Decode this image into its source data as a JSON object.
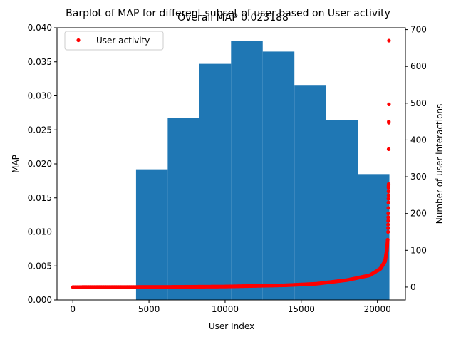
{
  "suptitle": "Barplot of MAP for different subset of user based on User activity",
  "chart_data": {
    "type": "bar",
    "title": "Overall MAP 0.023188",
    "xlabel": "User Index",
    "ylabel": "MAP",
    "y2label": "Number of user interactions",
    "xlim": [
      -1040,
      21840
    ],
    "ylim": [
      0,
      0.04
    ],
    "y2lim": [
      -35,
      705
    ],
    "xticks": [
      0,
      5000,
      10000,
      15000,
      20000
    ],
    "yticks": [
      0.0,
      0.005,
      0.01,
      0.015,
      0.02,
      0.025,
      0.03,
      0.035,
      0.04
    ],
    "ytick_labels": [
      "0.000",
      "0.005",
      "0.010",
      "0.015",
      "0.020",
      "0.025",
      "0.030",
      "0.035",
      "0.040"
    ],
    "y2ticks": [
      0,
      100,
      200,
      300,
      400,
      500,
      600,
      700
    ],
    "bar_color": "#1f77b4",
    "bars": [
      {
        "x0": 4150,
        "x1": 6230,
        "value": 0.0192
      },
      {
        "x0": 6230,
        "x1": 8310,
        "value": 0.0268
      },
      {
        "x0": 8310,
        "x1": 10390,
        "value": 0.0347
      },
      {
        "x0": 10390,
        "x1": 12470,
        "value": 0.0381
      },
      {
        "x0": 12470,
        "x1": 14550,
        "value": 0.0365
      },
      {
        "x0": 14550,
        "x1": 16630,
        "value": 0.0316
      },
      {
        "x0": 16630,
        "x1": 18710,
        "value": 0.0264
      },
      {
        "x0": 18710,
        "x1": 20790,
        "value": 0.0185
      }
    ],
    "scatter_series": {
      "name": "User activity",
      "color": "#ff0000",
      "curve": [
        [
          0,
          0
        ],
        [
          6000,
          0.4
        ],
        [
          10000,
          1.5
        ],
        [
          14000,
          5
        ],
        [
          16000,
          9
        ],
        [
          18000,
          19
        ],
        [
          19500,
          32
        ],
        [
          20200,
          50
        ],
        [
          20500,
          70
        ],
        [
          20620,
          100
        ],
        [
          20680,
          130
        ]
      ],
      "outliers": [
        [
          20700,
          150
        ],
        [
          20700,
          160
        ],
        [
          20700,
          170
        ],
        [
          20710,
          180
        ],
        [
          20710,
          190
        ],
        [
          20710,
          200
        ],
        [
          20720,
          215
        ],
        [
          20720,
          230
        ],
        [
          20720,
          240
        ],
        [
          20730,
          250
        ],
        [
          20730,
          260
        ],
        [
          20730,
          270
        ],
        [
          20730,
          275
        ],
        [
          20740,
          280
        ],
        [
          20740,
          375
        ],
        [
          20750,
          447
        ],
        [
          20750,
          450
        ],
        [
          20760,
          497
        ],
        [
          20760,
          670
        ]
      ]
    },
    "legend": "upper-left"
  }
}
